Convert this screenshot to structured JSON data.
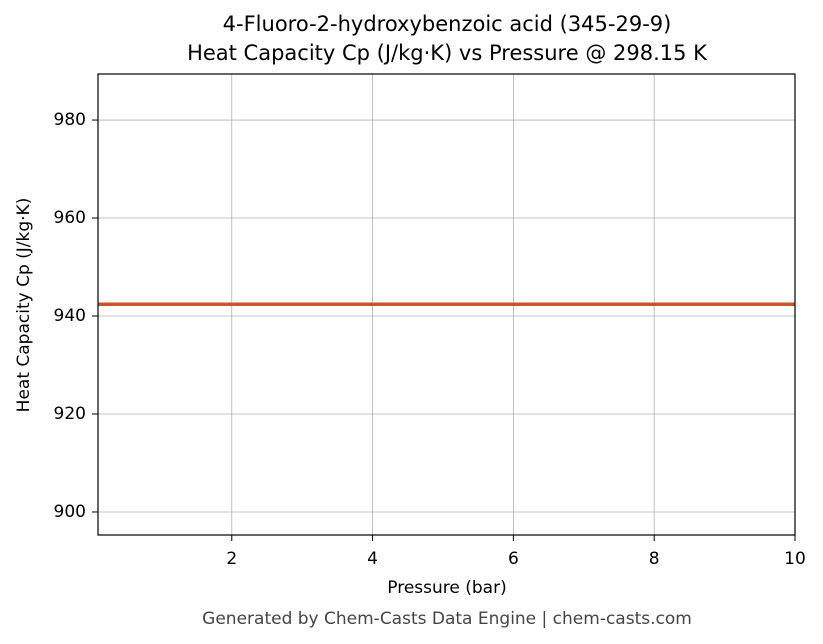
{
  "chart_data": {
    "type": "line",
    "title": "4-Fluoro-2-hydroxybenzoic acid (345-29-9)",
    "subtitle": "Heat Capacity Cp (J/kg·K) vs Pressure @ 298.15 K",
    "x_label": "Pressure (bar)",
    "y_label": "Heat Capacity Cp (J/kg·K)",
    "x": [
      0.1,
      10
    ],
    "series": [
      {
        "name": "Cp",
        "color": "#c8552b",
        "values": [
          942.4,
          942.4
        ]
      }
    ],
    "xlim": [
      0.1,
      10
    ],
    "xticks": [
      2,
      4,
      6,
      8,
      10
    ],
    "ylim": [
      895.3,
      989.4
    ],
    "yticks": [
      900,
      920,
      940,
      960,
      980
    ],
    "grid": true
  },
  "footer": "Generated by Chem-Casts Data Engine | chem-casts.com"
}
